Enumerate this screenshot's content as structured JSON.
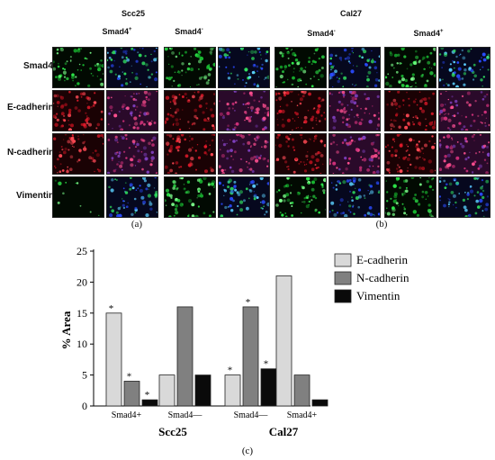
{
  "panel_a": {
    "group_title": "Scc25",
    "col_headers": [
      {
        "base": "Smad4",
        "sup": "+"
      },
      {
        "base": "Smad4",
        "sup": "-"
      }
    ],
    "caption": "(a)"
  },
  "panel_b": {
    "group_title": "Cal27",
    "col_headers": [
      {
        "base": "Smad4",
        "sup": "-"
      },
      {
        "base": "Smad4",
        "sup": "+"
      }
    ],
    "caption": "(b)"
  },
  "row_labels": [
    "Smad4",
    "E-cadherin",
    "N-cadherin",
    "Vimentin"
  ],
  "tile_colors": {
    "Smad4": [
      "green",
      "merge"
    ],
    "E-cadherin": [
      "red",
      "merge"
    ],
    "N-cadherin": [
      "red",
      "merge"
    ],
    "Vimentin": [
      "green",
      "merge"
    ]
  },
  "chart_data": {
    "type": "bar",
    "ylabel": "% Area",
    "ylim": [
      0,
      25
    ],
    "yticks": [
      0,
      5,
      10,
      15,
      20,
      25
    ],
    "categories": [
      "Smad4+",
      "Smad4—",
      "Smad4—",
      "Smad4+"
    ],
    "groups": [
      {
        "label": "Scc25",
        "categories": [
          0,
          1
        ]
      },
      {
        "label": "Cal27",
        "categories": [
          2,
          3
        ]
      }
    ],
    "series": [
      {
        "name": "E-cadherin",
        "color": "#d9d9d9",
        "values": [
          15,
          5,
          5,
          21
        ]
      },
      {
        "name": "N-cadherin",
        "color": "#808080",
        "values": [
          4,
          16,
          16,
          5
        ]
      },
      {
        "name": "Vimentin",
        "color": "#0a0a0a",
        "values": [
          1,
          5,
          6,
          1
        ]
      }
    ],
    "significance_marker": "*",
    "significant": [
      [
        true,
        false,
        true,
        false
      ],
      [
        true,
        false,
        true,
        false
      ],
      [
        true,
        false,
        true,
        false
      ]
    ],
    "legend_position": "top-right",
    "caption": "(c)"
  }
}
